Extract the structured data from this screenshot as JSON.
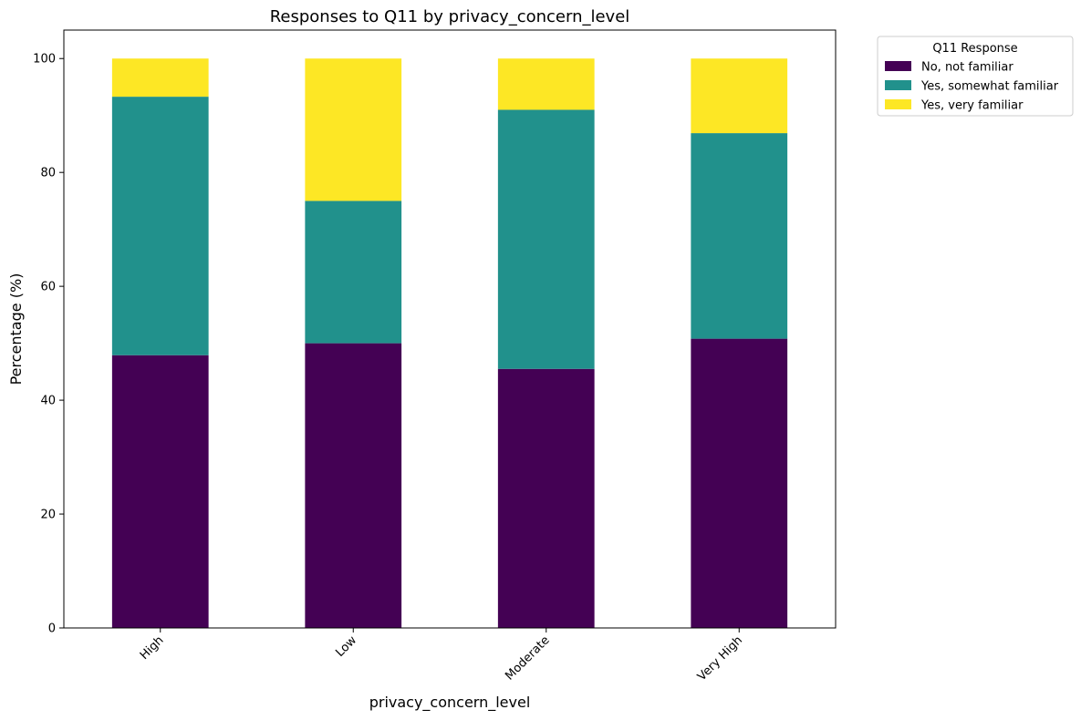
{
  "chart_data": {
    "type": "bar",
    "stacked": true,
    "title": "Responses to Q11 by privacy_concern_level",
    "xlabel": "privacy_concern_level",
    "ylabel": "Percentage (%)",
    "categories": [
      "High",
      "Low",
      "Moderate",
      "Very High"
    ],
    "ylim": [
      0,
      105
    ],
    "yticks": [
      "0",
      "20",
      "40",
      "60",
      "80",
      "100"
    ],
    "legend": {
      "title": "Q11 Response",
      "placement": "outside-upper-right"
    },
    "grid": false,
    "series": [
      {
        "name": "No, not familiar",
        "color": "#440154",
        "values": [
          47.9,
          50.0,
          45.5,
          50.8
        ]
      },
      {
        "name": "Yes, somewhat familiar",
        "color": "#21918c",
        "values": [
          45.4,
          25.0,
          45.5,
          36.1
        ]
      },
      {
        "name": "Yes, very familiar",
        "color": "#fde725",
        "values": [
          6.7,
          25.0,
          9.0,
          13.1
        ]
      }
    ]
  }
}
